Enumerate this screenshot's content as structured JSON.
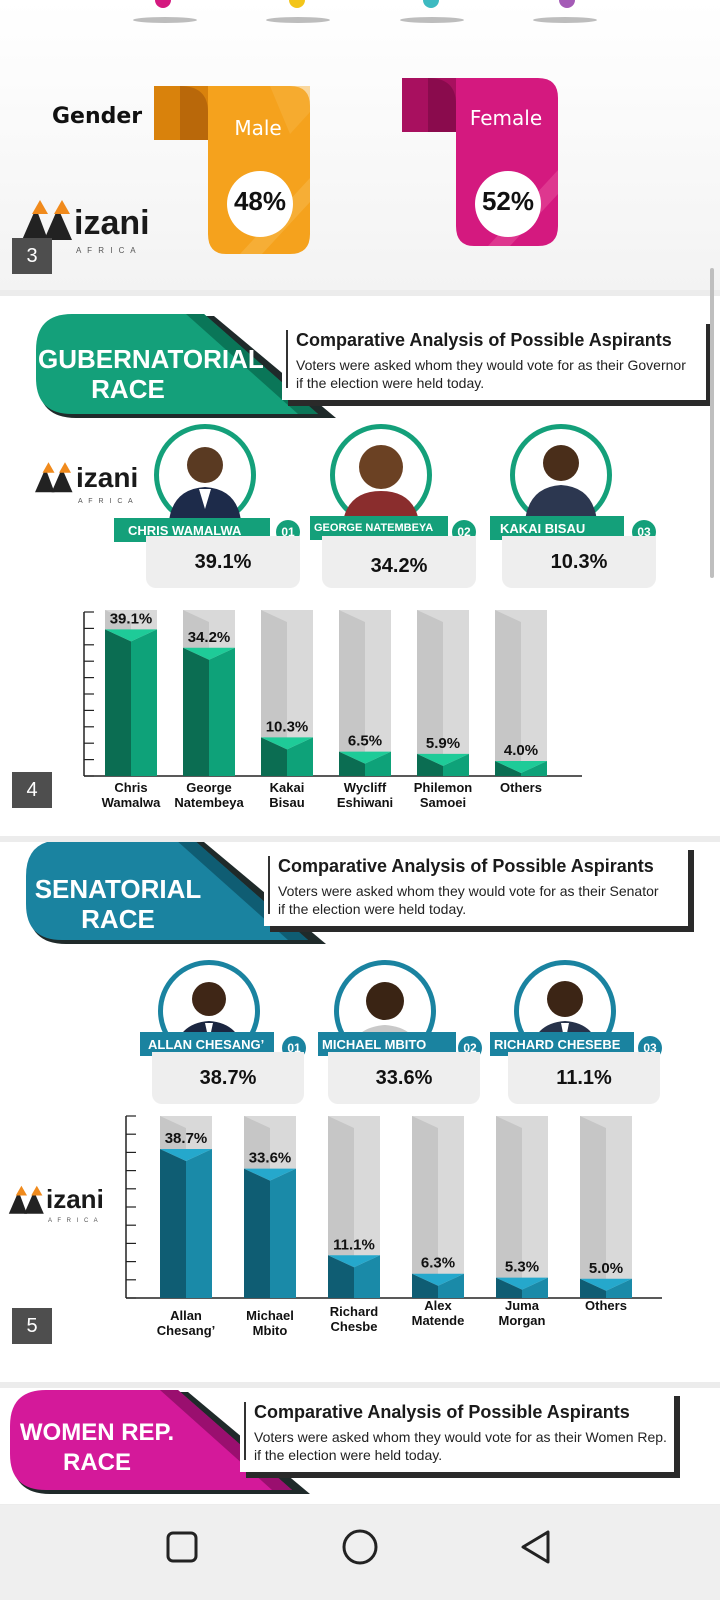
{
  "gender_panel": {
    "page_number": "3",
    "gender_label": "Gender",
    "male": {
      "label": "Male",
      "value": "48%",
      "color": "#f5a21d"
    },
    "female": {
      "label": "Female",
      "value": "52%",
      "color": "#d4197f"
    }
  },
  "logo": {
    "brand": "izani",
    "sub": "A F R I C A"
  },
  "gubernatorial": {
    "page_number": "4",
    "race_line1": "GUBERNATORIAL",
    "race_line2": "RACE",
    "heading": "Comparative Analysis of Possible Aspirants",
    "desc_line1": "Voters were asked whom they would vote for as their Governor",
    "desc_line2": "if the election were held today.",
    "color": "#14a07a",
    "candidates": [
      {
        "name": "CHRIS WAMALWA",
        "ordinal": "01",
        "pct": "39.1%"
      },
      {
        "name": "GEORGE NATEMBEYA",
        "ordinal": "02",
        "pct": "34.2%"
      },
      {
        "name": "KAKAI BISAU",
        "ordinal": "03",
        "pct": "10.3%"
      }
    ]
  },
  "senatorial": {
    "page_number": "5",
    "race_line1": "SENATORIAL",
    "race_line2": "RACE",
    "heading": "Comparative Analysis of Possible Aspirants",
    "desc_line1": "Voters were asked whom they would vote for as their Senator",
    "desc_line2": "if the election were held today.",
    "color": "#1a83a0",
    "candidates": [
      {
        "name": "ALLAN CHESANG’",
        "ordinal": "01",
        "pct": "38.7%"
      },
      {
        "name": "MICHAEL MBITO",
        "ordinal": "02",
        "pct": "33.6%"
      },
      {
        "name": "RICHARD CHESEBE",
        "ordinal": "03",
        "pct": "11.1%"
      }
    ]
  },
  "women_rep": {
    "race_line1": "WOMEN REP.",
    "race_line2": "RACE",
    "heading": "Comparative Analysis of Possible Aspirants",
    "desc_line1": "Voters were asked whom they would vote for as their Women Rep.",
    "desc_line2": "if the election were held today.",
    "color": "#d4199a"
  },
  "chart_data": [
    {
      "type": "bar",
      "categories": [
        [
          "Chris",
          "Wamalwa"
        ],
        [
          "George",
          "Natembeya"
        ],
        [
          "Kakai",
          "Bisau"
        ],
        [
          "Wycliff",
          "Eshiwani"
        ],
        [
          "Philemon",
          "Samoei"
        ],
        [
          "Others"
        ]
      ],
      "values": [
        39.1,
        34.2,
        10.3,
        6.5,
        5.9,
        4.0
      ],
      "labels": [
        "39.1%",
        "34.2%",
        "10.3%",
        "6.5%",
        "5.9%",
        "4.0%"
      ],
      "ylim": [
        0,
        40
      ],
      "colors": {
        "front": "#0ea279",
        "side": "#0b6d52",
        "top": "#1ecb98",
        "back": "#d9d9d9"
      }
    },
    {
      "type": "bar",
      "categories": [
        [
          "Allan",
          "Chesang’"
        ],
        [
          "Michael",
          "Mbito"
        ],
        [
          "Richard",
          "Chesbe"
        ],
        [
          "Alex",
          "Matende"
        ],
        [
          "Juma",
          "Morgan"
        ],
        [
          "Others"
        ]
      ],
      "values": [
        38.7,
        33.6,
        11.1,
        6.3,
        5.3,
        5.0
      ],
      "labels": [
        "38.7%",
        "33.6%",
        "11.1%",
        "6.3%",
        "5.3%",
        "5.0%"
      ],
      "ylim": [
        0,
        40
      ],
      "colors": {
        "front": "#1a8aa8",
        "side": "#0f5d73",
        "top": "#25a8cc",
        "back": "#d9d9d9"
      }
    }
  ],
  "navbar": {
    "recent_icon": "square-icon",
    "home_icon": "circle-icon",
    "back_icon": "triangle-back-icon"
  }
}
